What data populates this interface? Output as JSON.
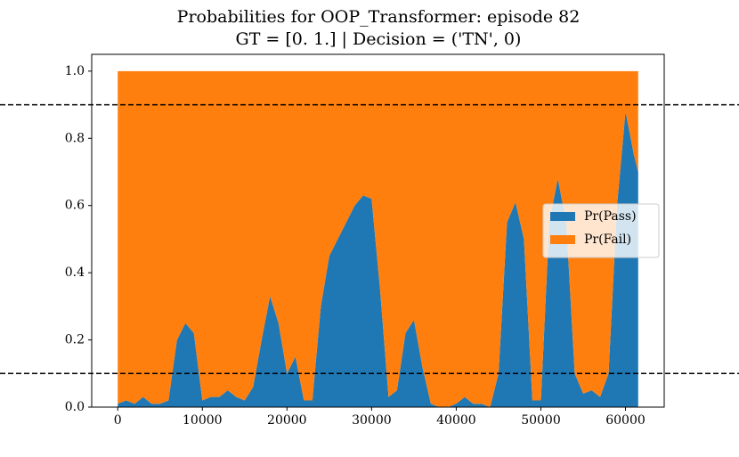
{
  "chart_data": {
    "type": "stacked_area",
    "title": "Probabilities for OOP_Transformer: episode 82",
    "subtitle": "GT = [0. 1.] | Decision = ('TN', 0)",
    "x": [
      0,
      1000,
      2000,
      3000,
      4000,
      5000,
      6000,
      7000,
      8000,
      9000,
      10000,
      11000,
      12000,
      13000,
      14000,
      15000,
      16000,
      17000,
      18000,
      19000,
      20000,
      21000,
      22000,
      23000,
      24000,
      25000,
      26000,
      27000,
      28000,
      29000,
      30000,
      31000,
      32000,
      33000,
      34000,
      35000,
      36000,
      37000,
      38000,
      39000,
      40000,
      41000,
      42000,
      43000,
      44000,
      45000,
      46000,
      47000,
      48000,
      49000,
      50000,
      51000,
      52000,
      53000,
      54000,
      55000,
      56000,
      57000,
      58000,
      59000,
      60000,
      61000,
      61500
    ],
    "series": [
      {
        "name": "Pr(Pass)",
        "color": "#1f77b4",
        "values": [
          0.01,
          0.02,
          0.01,
          0.03,
          0.01,
          0.01,
          0.02,
          0.2,
          0.25,
          0.22,
          0.02,
          0.03,
          0.03,
          0.05,
          0.03,
          0.02,
          0.06,
          0.2,
          0.33,
          0.25,
          0.1,
          0.15,
          0.02,
          0.02,
          0.3,
          0.45,
          0.5,
          0.55,
          0.6,
          0.63,
          0.62,
          0.35,
          0.03,
          0.05,
          0.22,
          0.26,
          0.12,
          0.01,
          0,
          0,
          0.01,
          0.03,
          0.01,
          0.01,
          0,
          0.1,
          0.55,
          0.61,
          0.5,
          0.02,
          0.02,
          0.55,
          0.68,
          0.55,
          0.1,
          0.04,
          0.05,
          0.03,
          0.1,
          0.6,
          0.88,
          0.75,
          0.7
        ]
      },
      {
        "name": "Pr(Fail)",
        "color": "#ff7f0e",
        "values": [
          0.99,
          0.98,
          0.99,
          0.97,
          0.99,
          0.99,
          0.98,
          0.8,
          0.75,
          0.78,
          0.98,
          0.97,
          0.97,
          0.95,
          0.97,
          0.98,
          0.94,
          0.8,
          0.67,
          0.75,
          0.9,
          0.85,
          0.98,
          0.98,
          0.7,
          0.55,
          0.5,
          0.45,
          0.4,
          0.37,
          0.38,
          0.65,
          0.97,
          0.95,
          0.78,
          0.74,
          0.88,
          0.99,
          1,
          1,
          0.99,
          0.97,
          0.99,
          0.99,
          1,
          0.9,
          0.45,
          0.39,
          0.5,
          0.98,
          0.98,
          0.45,
          0.32,
          0.45,
          0.9,
          0.96,
          0.95,
          0.97,
          0.9,
          0.4,
          0.12,
          0.25,
          0.3
        ]
      }
    ],
    "thresholds": [
      0.1,
      0.9
    ],
    "xlim": [
      -3075,
      64575
    ],
    "ylim": [
      0,
      1.05
    ],
    "xticks": [
      0,
      10000,
      20000,
      30000,
      40000,
      50000,
      60000
    ],
    "yticks": [
      {
        "value": 0,
        "label": "0.0"
      },
      {
        "value": 0.2,
        "label": "0.2"
      },
      {
        "value": 0.4,
        "label": "0.4"
      },
      {
        "value": 0.6,
        "label": "0.6"
      },
      {
        "value": 0.8,
        "label": "0.8"
      },
      {
        "value": 1.0,
        "label": "1.0"
      }
    ],
    "legend": "center right"
  }
}
